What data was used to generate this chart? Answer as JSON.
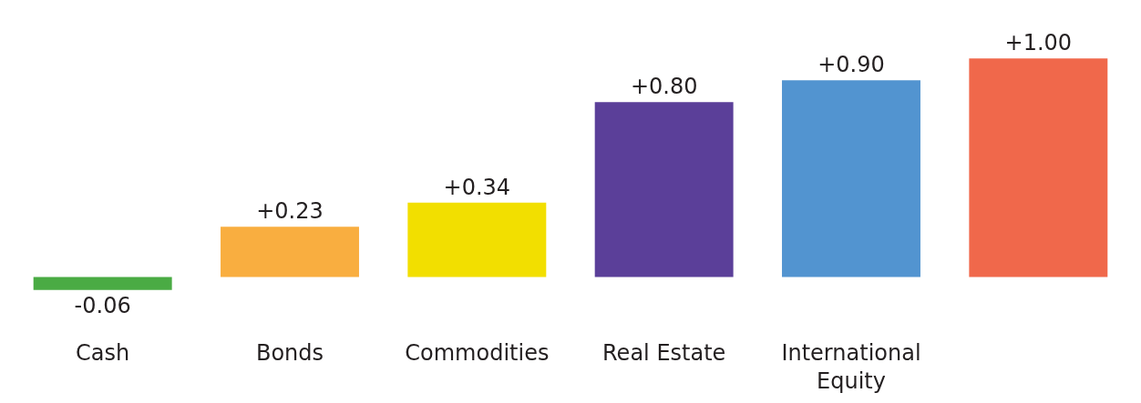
{
  "chart_data": {
    "type": "bar",
    "categories": [
      "Cash",
      "Bonds",
      "Commodities",
      "Real Estate",
      "International Equity",
      null
    ],
    "values": [
      -0.06,
      0.23,
      0.34,
      0.8,
      0.9,
      1
    ],
    "value_labels": [
      "-0.06",
      "+0.23",
      "+0.34",
      "+0.80",
      "+0.90",
      "+1.00"
    ],
    "colors": [
      "#4aab44",
      "#f9ae40",
      "#f2df00",
      "#5b3f99",
      "#5294d0",
      "#f0684b"
    ],
    "grid": false
  }
}
